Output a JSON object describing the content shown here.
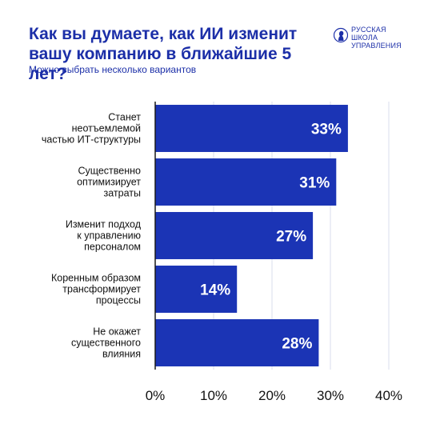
{
  "header": {
    "title_lines": [
      "Как вы думаете, как ИИ изменит",
      "вашу компанию в ближайшие 5 лет?"
    ],
    "subtitle": "Можно выбрать несколько вариантов"
  },
  "logo": {
    "icon": "bust-silhouette-icon",
    "text_lines": [
      "РУССКАЯ",
      "ШКОЛА",
      "УПРАВЛЕНИЯ"
    ]
  },
  "colors": {
    "bar": "#1b34b5",
    "text": "#1c2fa8",
    "grid": "#d9dcec",
    "axis": "#1a1a1a"
  },
  "chart_data": {
    "type": "bar",
    "orientation": "horizontal",
    "categories": [
      [
        "Станет",
        "неотъемлемой",
        "частью ИТ-структуры"
      ],
      [
        "Существенно",
        "оптимизирует",
        "затраты"
      ],
      [
        "Изменит подход",
        "к управлению",
        "персоналом"
      ],
      [
        "Коренным образом",
        "трансформирует",
        "процессы"
      ],
      [
        "Не окажет",
        "существенного",
        "влияния"
      ]
    ],
    "values": [
      33,
      31,
      27,
      14,
      28
    ],
    "value_labels": [
      "33%",
      "31%",
      "27%",
      "14%",
      "28%"
    ],
    "xlim": [
      0,
      40
    ],
    "xticks": [
      0,
      10,
      20,
      30,
      40
    ],
    "xtick_labels": [
      "0%",
      "10%",
      "20%",
      "30%",
      "40%"
    ],
    "grid": true
  }
}
